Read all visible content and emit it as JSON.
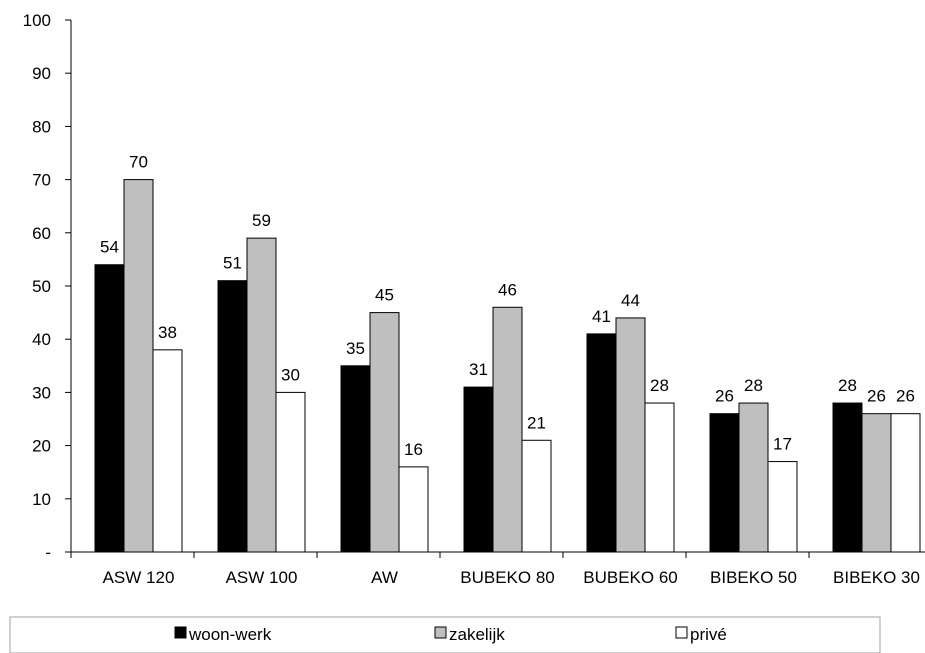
{
  "chart_data": {
    "type": "bar",
    "categories": [
      "ASW 120",
      "ASW 100",
      "AW",
      "BUBEKO 80",
      "BUBEKO 60",
      "BIBEKO 50",
      "BIBEKO 30"
    ],
    "series": [
      {
        "name": "woon-werk",
        "color": "#000000",
        "values": [
          54,
          51,
          35,
          31,
          41,
          26,
          28
        ]
      },
      {
        "name": "zakelijk",
        "color": "#bfbfbf",
        "values": [
          70,
          59,
          45,
          46,
          44,
          28,
          26
        ]
      },
      {
        "name": "privé",
        "color": "#ffffff",
        "values": [
          38,
          30,
          16,
          21,
          28,
          17,
          26
        ]
      }
    ],
    "ylim": [
      0,
      100
    ],
    "yticks": [
      0,
      10,
      20,
      30,
      40,
      50,
      60,
      70,
      80,
      90,
      100
    ],
    "ytick_labels": [
      "-",
      "10",
      "20",
      "30",
      "40",
      "50",
      "60",
      "70",
      "80",
      "90",
      "100"
    ],
    "legend_placement": "bottom",
    "grid": false
  }
}
